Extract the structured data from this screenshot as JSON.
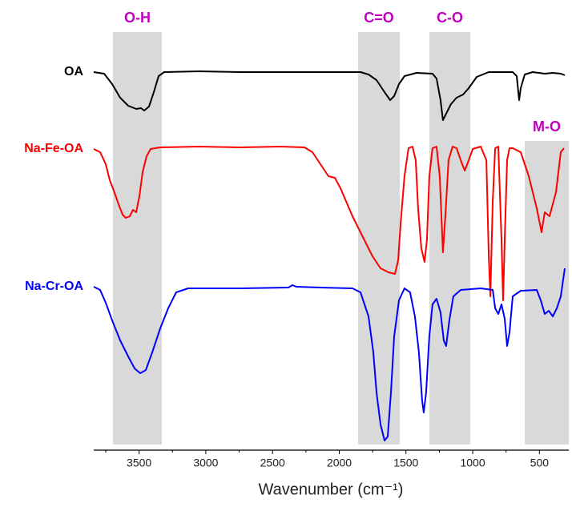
{
  "chart_data": {
    "type": "line",
    "xlabel": "Wavenumber (cm⁻¹)",
    "xlim": [
      3840,
      280
    ],
    "xticks": [
      3500,
      3000,
      2500,
      2000,
      1500,
      1000,
      500
    ],
    "ylim": [
      0,
      104.4
    ],
    "band_color": "#d9d9d9",
    "band_label_color": "#c000c0",
    "bands": [
      {
        "label": "O-H",
        "x": [
          3696,
          3330
        ]
      },
      {
        "label": "C=O",
        "x": [
          1859,
          1547
        ]
      },
      {
        "label": "C-O",
        "x": [
          1325,
          1018
        ]
      },
      {
        "label": "M-O",
        "x": [
          610,
          280
        ]
      }
    ],
    "series": [
      {
        "name": "OA",
        "color": "#000000",
        "x": [
          3840,
          3762,
          3702,
          3642,
          3582,
          3522,
          3486,
          3462,
          3426,
          3390,
          3354,
          3312,
          3042,
          2742,
          2441,
          2141,
          1841,
          1781,
          1721,
          1661,
          1619,
          1589,
          1553,
          1511,
          1421,
          1301,
          1271,
          1241,
          1223,
          1193,
          1163,
          1121,
          1072,
          1030,
          970,
          880,
          700,
          670,
          652,
          640,
          610,
          550,
          460,
          400,
          340,
          310
        ],
        "values": [
          94.4,
          94,
          91.4,
          88,
          86,
          85.2,
          85.4,
          84.8,
          85.8,
          89.4,
          93.4,
          94.4,
          94.6,
          94.4,
          94.4,
          94.4,
          94.4,
          93.8,
          92.4,
          89.4,
          87.4,
          88.4,
          91.4,
          93.4,
          94.2,
          94,
          92.8,
          87.4,
          82.4,
          84.4,
          86.4,
          88,
          88.8,
          90.4,
          93.2,
          94.4,
          94.4,
          93.4,
          87.4,
          90.4,
          93.8,
          94.4,
          94,
          94.2,
          94,
          93.6
        ]
      },
      {
        "name": "Na-Fe-OA",
        "color": "#ff0000",
        "x": [
          3840,
          3792,
          3750,
          3720,
          3690,
          3654,
          3624,
          3600,
          3570,
          3546,
          3522,
          3498,
          3474,
          3444,
          3414,
          3342,
          3042,
          2742,
          2441,
          2261,
          2201,
          2141,
          2081,
          2033,
          1991,
          1901,
          1811,
          1751,
          1691,
          1631,
          1583,
          1559,
          1541,
          1511,
          1481,
          1451,
          1427,
          1409,
          1385,
          1361,
          1343,
          1325,
          1301,
          1271,
          1247,
          1223,
          1205,
          1181,
          1151,
          1121,
          1090,
          1060,
          1030,
          1000,
          940,
          898,
          880,
          868,
          850,
          832,
          808,
          784,
          772,
          760,
          742,
          724,
          700,
          640,
          580,
          520,
          484,
          460,
          424,
          376,
          340,
          316
        ],
        "values": [
          75.2,
          74.4,
          71.4,
          67.4,
          64.8,
          61.4,
          58.8,
          58,
          58.4,
          60,
          59.4,
          63.4,
          69.4,
          73.4,
          75.2,
          75.6,
          75.8,
          75.6,
          75.8,
          75.6,
          74.4,
          71.4,
          68.4,
          68,
          65.4,
          58.4,
          52.4,
          48.4,
          45.4,
          44.4,
          44,
          47.4,
          56.4,
          68.4,
          75.4,
          75.8,
          72.4,
          60.4,
          50.4,
          47,
          52.4,
          68.4,
          75.4,
          75.8,
          68.4,
          49.4,
          58.4,
          72.4,
          75.8,
          75.4,
          72.4,
          69.8,
          72.4,
          75.2,
          75.8,
          72.4,
          48.4,
          38.4,
          62.4,
          75.4,
          75.8,
          52.4,
          37.4,
          52.4,
          72.4,
          75.4,
          75.4,
          74.4,
          68.4,
          60.4,
          54.4,
          59.4,
          58.4,
          64.4,
          74.4,
          75.4
        ]
      },
      {
        "name": "Na-Cr-OA",
        "color": "#0000ff",
        "x": [
          3840,
          3792,
          3750,
          3702,
          3642,
          3582,
          3534,
          3492,
          3450,
          3402,
          3342,
          3282,
          3222,
          3132,
          2742,
          2381,
          2351,
          2321,
          2141,
          1901,
          1841,
          1781,
          1745,
          1721,
          1691,
          1661,
          1637,
          1613,
          1589,
          1553,
          1511,
          1469,
          1433,
          1403,
          1379,
          1367,
          1349,
          1325,
          1301,
          1271,
          1241,
          1217,
          1199,
          1175,
          1145,
          1090,
          940,
          850,
          832,
          808,
          784,
          760,
          742,
          724,
          700,
          640,
          520,
          490,
          460,
          430,
          400,
          370,
          340,
          310
        ],
        "values": [
          40.8,
          40,
          36.8,
          32.4,
          27.4,
          23.4,
          20.4,
          19.2,
          20,
          24.4,
          30.4,
          35.4,
          39.4,
          40.4,
          40.4,
          40.6,
          41.2,
          40.8,
          40.6,
          40.4,
          39.4,
          33.4,
          24.4,
          14.4,
          6.4,
          2.4,
          3.4,
          14.4,
          28.4,
          37.4,
          40.4,
          39.4,
          33.4,
          24.4,
          12.4,
          9.4,
          14.4,
          28.4,
          36.4,
          37.8,
          34.4,
          27.4,
          26,
          32.4,
          38.4,
          40,
          40.4,
          40,
          35.4,
          34,
          36.4,
          32.8,
          26,
          29.4,
          38.4,
          39.8,
          40,
          37.4,
          34,
          34.8,
          33.4,
          35.4,
          38.4,
          45.4
        ]
      }
    ]
  }
}
